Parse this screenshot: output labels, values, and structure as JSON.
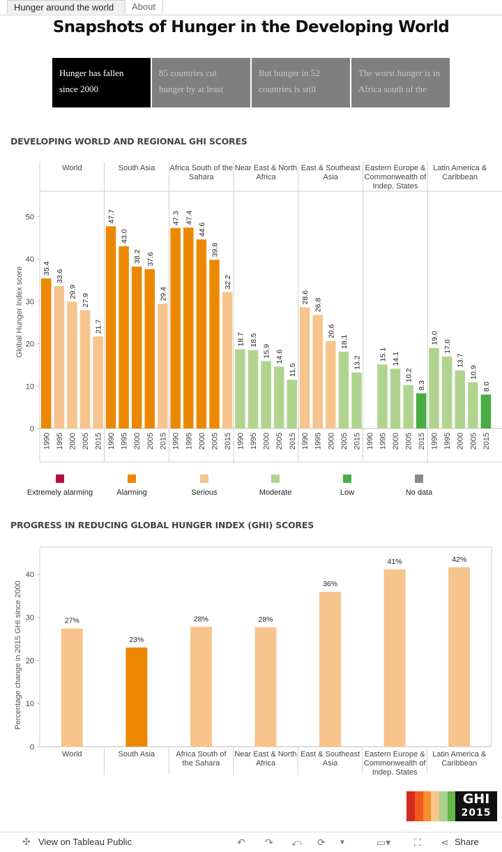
{
  "tabs": [
    {
      "label": "Hunger around the world",
      "active": true
    },
    {
      "label": "About",
      "active": false
    }
  ],
  "page_title": "Snapshots of Hunger in the Developing World",
  "story_points": [
    {
      "text": "Hunger has fallen since 2000",
      "active": true
    },
    {
      "text": "85 countries cut hunger by at least",
      "active": false
    },
    {
      "text": "But hunger in 52 countries is still",
      "active": false
    },
    {
      "text": "The worst hunger is in Africa south of the",
      "active": false
    }
  ],
  "colors": {
    "Extremely alarming": "#b5103d",
    "Alarming": "#ec8800",
    "Serious": "#f6c48c",
    "Moderate": "#b0d48f",
    "Low": "#4aac43",
    "No data": "#8a8a8a"
  },
  "legend": [
    "Extremely alarming",
    "Alarming",
    "Serious",
    "Moderate",
    "Low",
    "No data"
  ],
  "chart_data": [
    {
      "type": "bar",
      "title": "DEVELOPING WORLD AND REGIONAL GHI SCORES",
      "ylabel": "Global Hunger Index score",
      "ylim": [
        0,
        55
      ],
      "yticks": [
        0,
        10,
        20,
        30,
        40,
        50
      ],
      "years": [
        "1990",
        "1995",
        "2000",
        "2005",
        "2015"
      ],
      "regions": [
        {
          "name": "World",
          "label_lines": [
            "World"
          ],
          "values": [
            35.4,
            33.6,
            29.9,
            27.9,
            21.7
          ],
          "labels": [
            "35.4",
            "33.6",
            "29.9",
            "27.9",
            "21.7"
          ],
          "severity": [
            "Alarming",
            "Serious",
            "Serious",
            "Serious",
            "Serious"
          ]
        },
        {
          "name": "South Asia",
          "label_lines": [
            "South Asia"
          ],
          "values": [
            47.7,
            43.0,
            38.2,
            37.6,
            29.4
          ],
          "labels": [
            "47.7",
            "43.0",
            "38.2",
            "37.6",
            "29.4"
          ],
          "severity": [
            "Alarming",
            "Alarming",
            "Alarming",
            "Alarming",
            "Serious"
          ]
        },
        {
          "name": "Africa South of the Sahara",
          "label_lines": [
            "Africa South of the",
            "Sahara"
          ],
          "values": [
            47.3,
            47.4,
            44.6,
            39.8,
            32.2
          ],
          "labels": [
            "47.3",
            "47.4",
            "44.6",
            "39.8",
            "32.2"
          ],
          "severity": [
            "Alarming",
            "Alarming",
            "Alarming",
            "Alarming",
            "Serious"
          ]
        },
        {
          "name": "Near East & North Africa",
          "label_lines": [
            "Near East & North",
            "Africa"
          ],
          "values": [
            18.7,
            18.5,
            15.9,
            14.6,
            11.5
          ],
          "labels": [
            "18.7",
            "18.5",
            "15.9",
            "14.6",
            "11.5"
          ],
          "severity": [
            "Moderate",
            "Moderate",
            "Moderate",
            "Moderate",
            "Moderate"
          ]
        },
        {
          "name": "East & Southeast Asia",
          "label_lines": [
            "East & Southeast",
            "Asia"
          ],
          "values": [
            28.6,
            26.8,
            20.6,
            18.1,
            13.2
          ],
          "labels": [
            "28.6",
            "26.8",
            "20.6",
            "18.1",
            "13.2"
          ],
          "severity": [
            "Serious",
            "Serious",
            "Serious",
            "Moderate",
            "Moderate"
          ]
        },
        {
          "name": "Eastern Europe & Commonwealth of Indep. States",
          "label_lines": [
            "Eastern Europe &",
            "Commonwealth of",
            "Indep. States"
          ],
          "values": [
            null,
            15.1,
            14.1,
            10.2,
            8.3
          ],
          "labels": [
            "",
            "15.1",
            "14.1",
            "10.2",
            "8.3"
          ],
          "severity": [
            "No data",
            "Moderate",
            "Moderate",
            "Moderate",
            "Low"
          ]
        },
        {
          "name": "Latin America & Caribbean",
          "label_lines": [
            "Latin America &",
            "Caribbean"
          ],
          "values": [
            19.0,
            17.0,
            13.7,
            10.9,
            8.0
          ],
          "labels": [
            "19.0",
            "17.0",
            "13.7",
            "10.9",
            "8.0"
          ],
          "severity": [
            "Moderate",
            "Moderate",
            "Moderate",
            "Moderate",
            "Low"
          ]
        }
      ]
    },
    {
      "type": "bar",
      "title": "PROGRESS IN REDUCING GLOBAL HUNGER INDEX (GHI) SCORES",
      "ylabel": "Percentage change in 2015 GHI since 2000",
      "ylim": [
        0,
        45
      ],
      "yticks": [
        0,
        10,
        20,
        30,
        40
      ],
      "categories": [
        {
          "name": "World",
          "label_lines": [
            "World"
          ],
          "value": 27.4,
          "label": "27%",
          "severity": "Serious"
        },
        {
          "name": "South Asia",
          "label_lines": [
            "South Asia"
          ],
          "value": 23.0,
          "label": "23%",
          "severity": "Alarming"
        },
        {
          "name": "Africa South of the Sahara",
          "label_lines": [
            "Africa South of",
            "the Sahara"
          ],
          "value": 27.8,
          "label": "28%",
          "severity": "Serious"
        },
        {
          "name": "Near East & North Africa",
          "label_lines": [
            "Near East & North",
            "Africa"
          ],
          "value": 27.7,
          "label": "28%",
          "severity": "Serious"
        },
        {
          "name": "East & Southeast Asia",
          "label_lines": [
            "East & Southeast",
            "Asia"
          ],
          "value": 35.9,
          "label": "36%",
          "severity": "Serious"
        },
        {
          "name": "Eastern Europe & Commonwealth of Indep. States",
          "label_lines": [
            "Eastern Europe &",
            "Commonwealth of",
            "Indep. States"
          ],
          "value": 41.1,
          "label": "41%",
          "severity": "Serious"
        },
        {
          "name": "Latin America & Caribbean",
          "label_lines": [
            "Latin America &",
            "Caribbean"
          ],
          "value": 41.6,
          "label": "42%",
          "severity": "Serious"
        }
      ]
    }
  ],
  "logo": {
    "line1": "GHI",
    "line2": "2015",
    "band_colors": [
      "#d42a1e",
      "#f25b20",
      "#f78d2b",
      "#f8c68c",
      "#a9d18e",
      "#64b74a"
    ]
  },
  "toolbar": {
    "view_label": "View on Tableau Public",
    "share_label": "Share",
    "icons": [
      "tableau-icon",
      "undo-icon",
      "redo-icon",
      "revert-icon",
      "refresh-icon",
      "dropdown-icon",
      "comment-icon",
      "fullscreen-icon",
      "share-icon"
    ]
  }
}
